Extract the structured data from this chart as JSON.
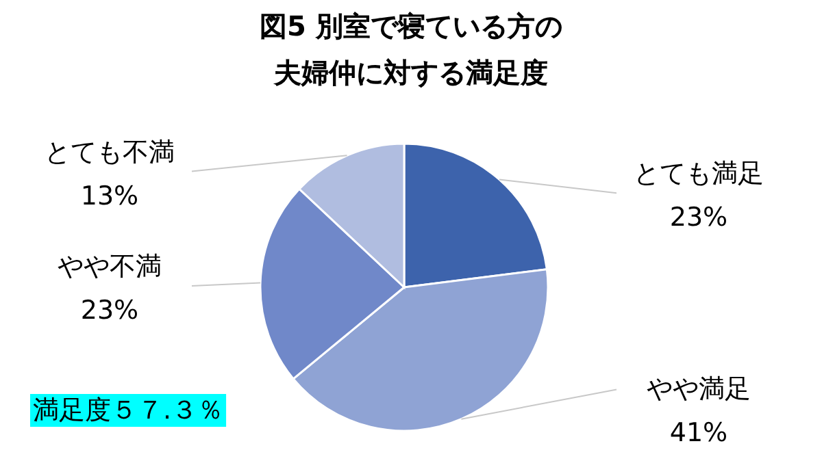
{
  "chart_data": {
    "type": "pie",
    "title": "図5 別室で寝ている方の",
    "subtitle": "夫婦仲に対する満足度",
    "value_labels": [
      "23%",
      "41%",
      "23%",
      "13%"
    ],
    "categories": [
      "とても満足",
      "やや満足",
      "やや不満",
      "とても不満"
    ],
    "values": [
      23,
      41,
      23,
      13
    ],
    "colors": [
      "#3d63ac",
      "#8fa3d4",
      "#7088c9",
      "#b0bde0"
    ],
    "annotations": [
      "満足度５７.３％"
    ]
  }
}
